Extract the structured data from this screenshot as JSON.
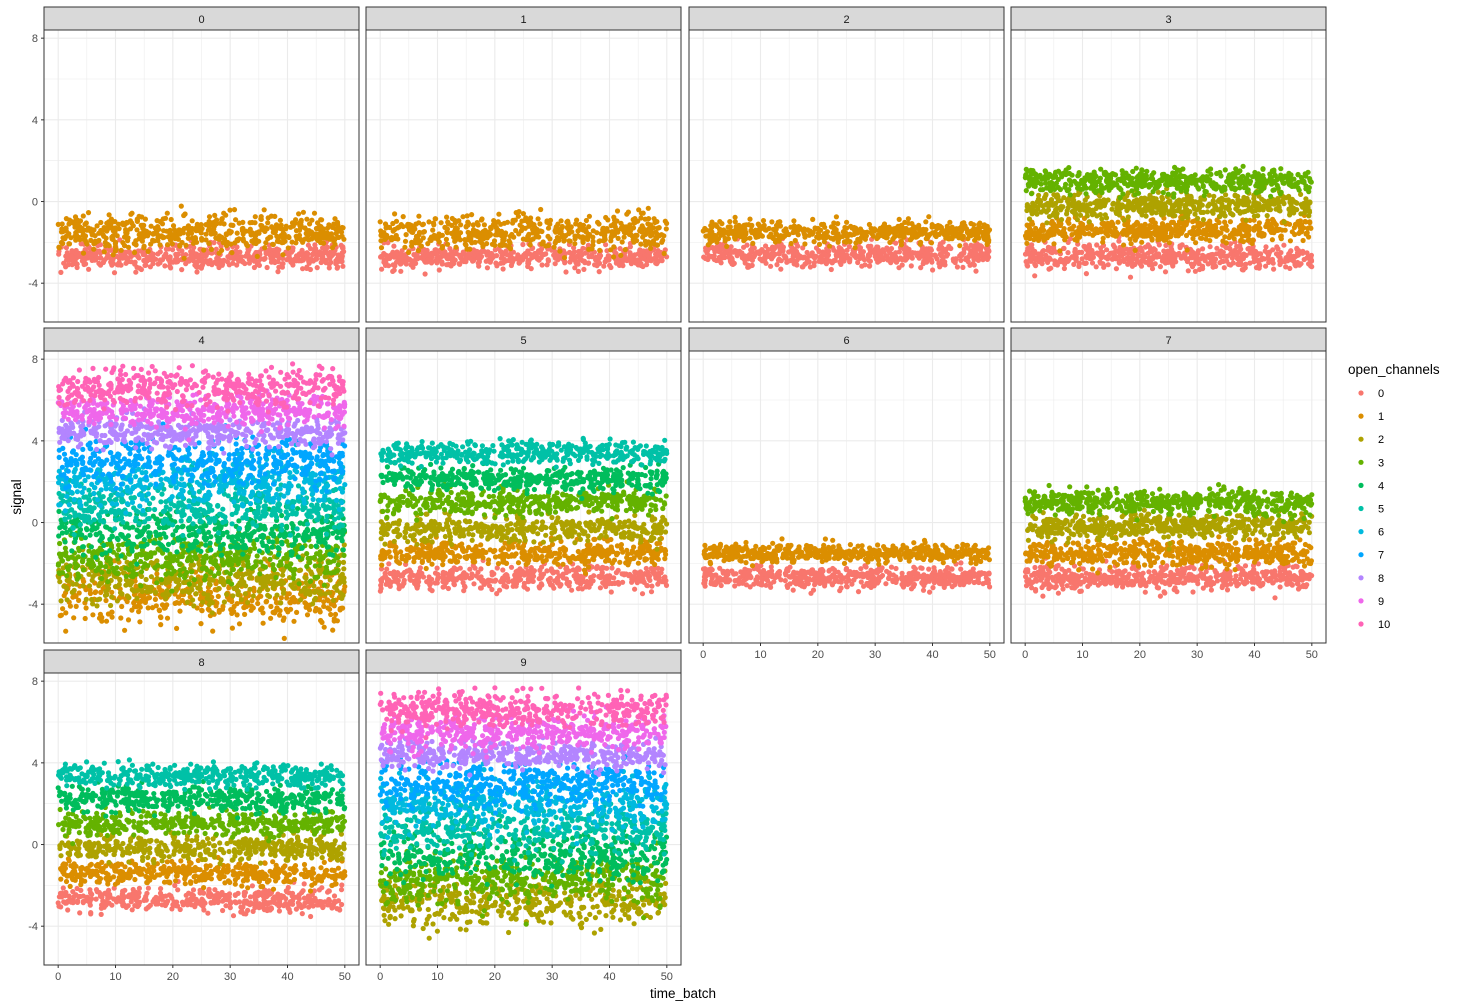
{
  "chart_data": {
    "type": "scatter",
    "facet_variable": "batch",
    "x_label": "time_batch",
    "y_label": "signal",
    "x_range": [
      0,
      50
    ],
    "y_range": [
      -5.9,
      8.4
    ],
    "x_ticks": [
      0,
      10,
      20,
      30,
      40,
      50
    ],
    "y_ticks": [
      -4,
      0,
      4,
      8
    ],
    "grid": true,
    "legend": {
      "title": "open_channels",
      "placement": "right",
      "entries": [
        {
          "label": "0",
          "color": "#F8766D"
        },
        {
          "label": "1",
          "color": "#DB8E00"
        },
        {
          "label": "2",
          "color": "#AEA200"
        },
        {
          "label": "3",
          "color": "#64B200"
        },
        {
          "label": "4",
          "color": "#00BD5C"
        },
        {
          "label": "5",
          "color": "#00C1A7"
        },
        {
          "label": "6",
          "color": "#00BADE"
        },
        {
          "label": "7",
          "color": "#00A6FF"
        },
        {
          "label": "8",
          "color": "#B385FF"
        },
        {
          "label": "9",
          "color": "#EF67EB"
        },
        {
          "label": "10",
          "color": "#FF63B6"
        }
      ]
    },
    "facets": [
      {
        "label": "0",
        "x_extent": [
          0,
          50
        ],
        "channels": [
          0,
          1
        ],
        "centers": [
          -2.7,
          -1.5
        ],
        "spreads": [
          0.28,
          0.42
        ]
      },
      {
        "label": "1",
        "x_extent": [
          0,
          50
        ],
        "channels": [
          0,
          1
        ],
        "centers": [
          -2.7,
          -1.5
        ],
        "spreads": [
          0.28,
          0.42
        ]
      },
      {
        "label": "2",
        "x_extent": [
          0,
          50
        ],
        "channels": [
          0,
          1
        ],
        "centers": [
          -2.6,
          -1.5
        ],
        "spreads": [
          0.28,
          0.25
        ]
      },
      {
        "label": "3",
        "x_extent": [
          0,
          50
        ],
        "channels": [
          0,
          1,
          2,
          3
        ],
        "centers": [
          -2.7,
          -1.4,
          -0.2,
          1.0
        ],
        "spreads": [
          0.3,
          0.3,
          0.3,
          0.28
        ]
      },
      {
        "label": "4",
        "x_extent": [
          0,
          50
        ],
        "channels": [
          1,
          2,
          3,
          4,
          5,
          6,
          7,
          8,
          9,
          10
        ],
        "centers": [
          -3.6,
          -2.8,
          -1.8,
          -0.5,
          0.8,
          2.0,
          3.0,
          4.4,
          5.5,
          6.6
        ],
        "spreads": [
          0.7,
          0.6,
          0.55,
          0.55,
          0.55,
          0.6,
          0.55,
          0.35,
          0.4,
          0.45
        ]
      },
      {
        "label": "5",
        "x_extent": [
          0,
          50
        ],
        "channels": [
          0,
          1,
          2,
          3,
          4,
          5
        ],
        "centers": [
          -2.7,
          -1.5,
          -0.3,
          1.0,
          2.2,
          3.4
        ],
        "spreads": [
          0.3,
          0.3,
          0.3,
          0.3,
          0.28,
          0.28
        ]
      },
      {
        "label": "6",
        "x_extent": [
          0,
          50
        ],
        "channels": [
          0,
          1
        ],
        "centers": [
          -2.7,
          -1.5
        ],
        "spreads": [
          0.26,
          0.22
        ]
      },
      {
        "label": "7",
        "x_extent": [
          0,
          50
        ],
        "channels": [
          0,
          1,
          2,
          3
        ],
        "centers": [
          -2.7,
          -1.5,
          -0.2,
          1.0
        ],
        "spreads": [
          0.3,
          0.3,
          0.3,
          0.28
        ]
      },
      {
        "label": "8",
        "x_extent": [
          0,
          50
        ],
        "channels": [
          0,
          1,
          2,
          3,
          4,
          5
        ],
        "centers": [
          -2.7,
          -1.4,
          -0.2,
          1.0,
          2.2,
          3.4
        ],
        "spreads": [
          0.3,
          0.3,
          0.3,
          0.3,
          0.3,
          0.28
        ]
      },
      {
        "label": "9",
        "x_extent": [
          0,
          50
        ],
        "channels": [
          2,
          3,
          4,
          5,
          6,
          7,
          8,
          9,
          10
        ],
        "centers": [
          -2.8,
          -1.7,
          -0.5,
          0.8,
          2.0,
          3.0,
          4.4,
          5.5,
          6.6
        ],
        "spreads": [
          0.6,
          0.55,
          0.55,
          0.55,
          0.6,
          0.55,
          0.35,
          0.4,
          0.45
        ]
      }
    ]
  }
}
